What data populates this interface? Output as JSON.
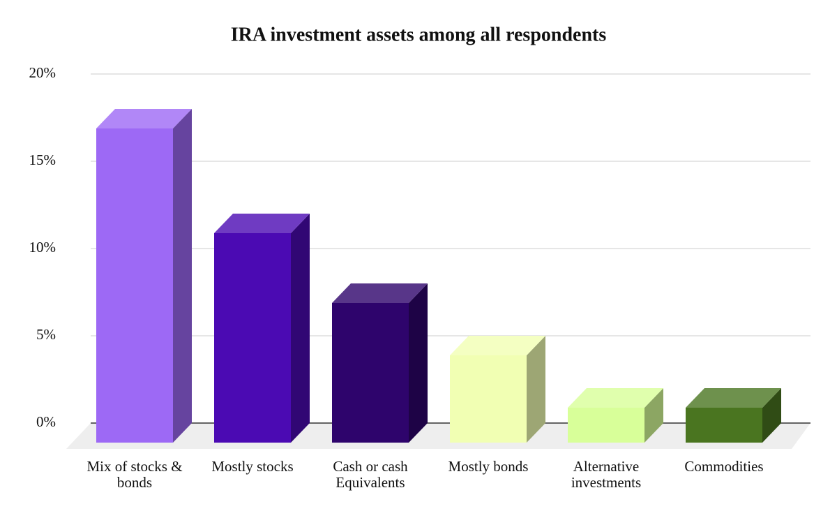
{
  "chart_data": {
    "type": "bar3d",
    "title": "IRA investment assets among all respondents",
    "categories": [
      "Mix of stocks & bonds",
      "Mostly stocks",
      "Cash or cash Equivalents",
      "Mostly bonds",
      "Alternative investments",
      "Commodities"
    ],
    "values": [
      18,
      12,
      8,
      5,
      2,
      2
    ],
    "colors": [
      "#9d69f5",
      "#4b0ab3",
      "#2e046c",
      "#f1ffb3",
      "#d8ff99",
      "#4a7520"
    ],
    "ylim": [
      0,
      20
    ],
    "yticks": [
      {
        "value": 0,
        "label": "0%"
      },
      {
        "value": 5,
        "label": "5%"
      },
      {
        "value": 10,
        "label": "10%"
      },
      {
        "value": 15,
        "label": "15%"
      },
      {
        "value": 20,
        "label": "20%"
      }
    ],
    "grid": true
  }
}
